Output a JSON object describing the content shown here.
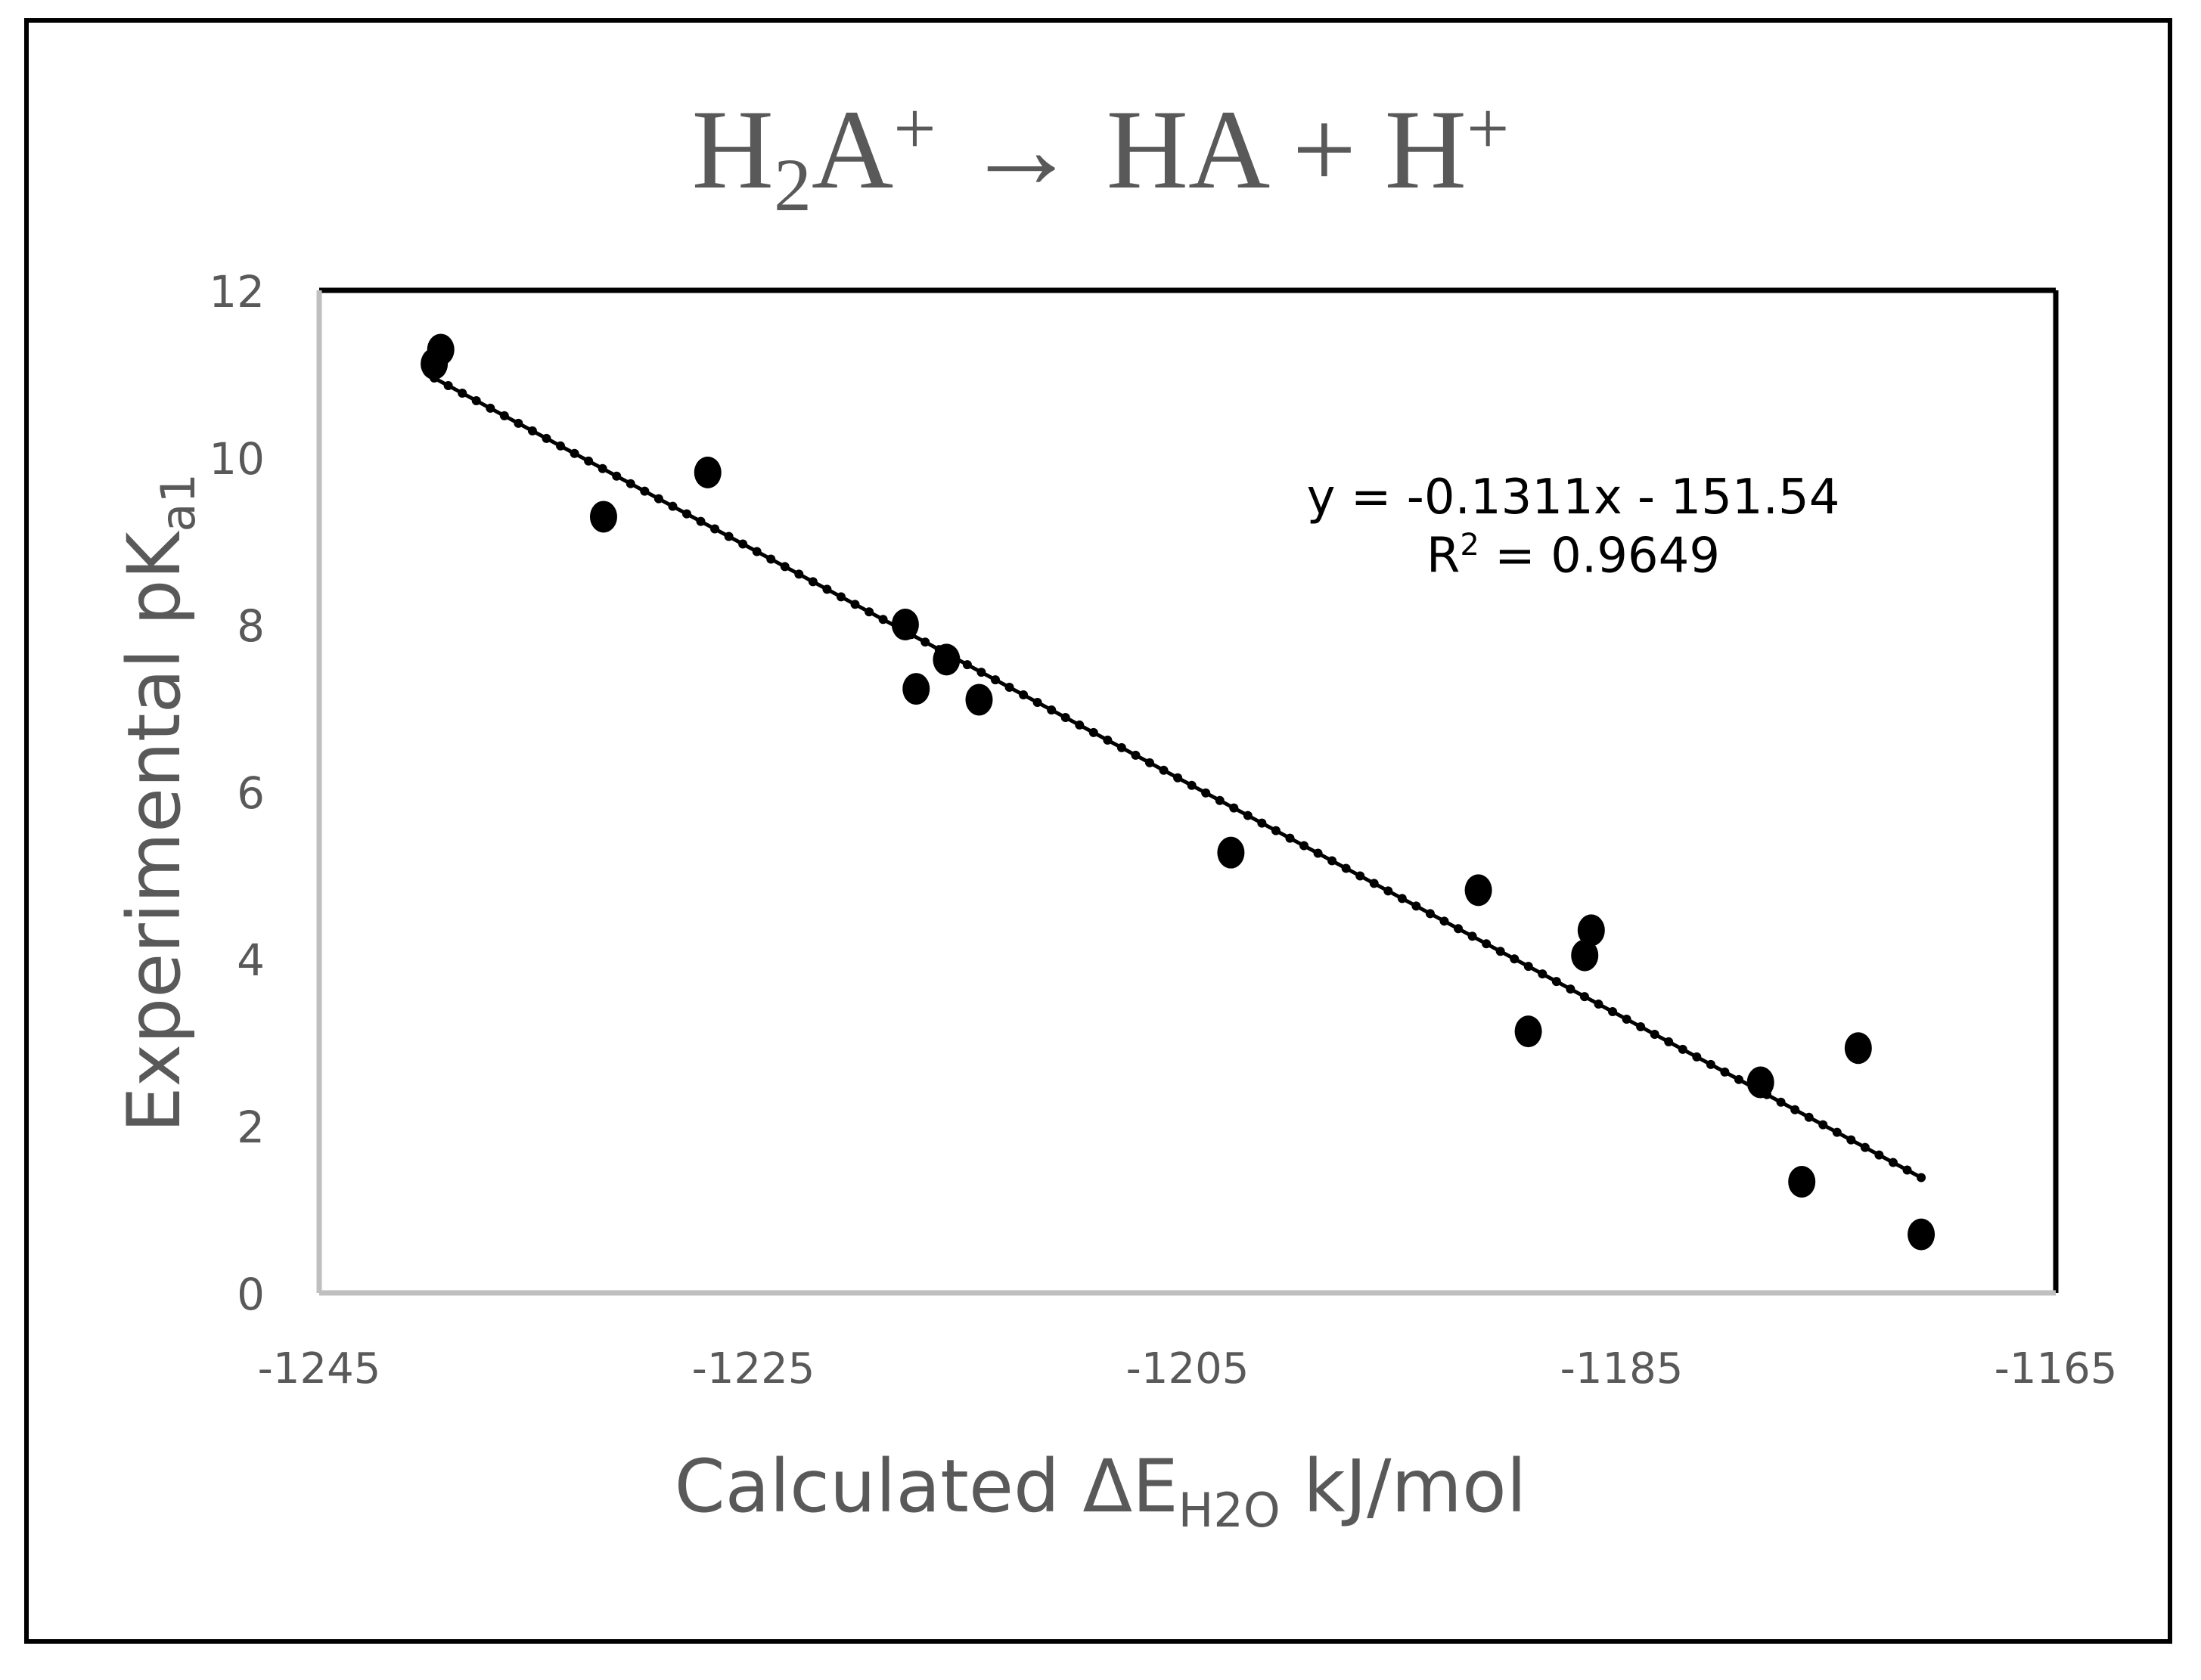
{
  "title": {
    "base1": "H",
    "sub1": "2",
    "base2": "A",
    "sup1": "+",
    "arrow": " → HA + H",
    "sup2": "+"
  },
  "axes": {
    "ylabel_main": "Experimental pK",
    "ylabel_sub": "a1",
    "xlabel_main": "Calculated ΔE",
    "xlabel_sub": "H2O",
    "xlabel_tail": " kJ/mol",
    "yticks": [
      "12",
      "10",
      "8",
      "6",
      "4",
      "2",
      "0"
    ],
    "xticks": [
      "-1245",
      "-1225",
      "-1205",
      "-1185",
      "-1165"
    ]
  },
  "trendline": {
    "equation": "y = -0.1311x - 151.54",
    "r2_label": "R",
    "r2_sup": "2",
    "r2_value": " = 0.9649"
  },
  "colors": {
    "text": "#595959",
    "points": "#000000",
    "axis_left_bottom": "#bfbfbf",
    "axis_top_right": "#000000"
  },
  "chart_data": {
    "type": "scatter",
    "title": "H2A+ → HA + H+",
    "xlabel": "Calculated ΔE_H2O kJ/mol",
    "ylabel": "Experimental pK_a1",
    "xlim": [
      -1245,
      -1165
    ],
    "ylim": [
      0,
      12
    ],
    "xticks": [
      -1245,
      -1225,
      -1205,
      -1185,
      -1165
    ],
    "yticks": [
      0,
      2,
      4,
      6,
      8,
      10,
      12
    ],
    "grid": false,
    "legend": null,
    "series": [
      {
        "name": "pKa1",
        "x": [
          -1239.4,
          -1239.7,
          -1231.9,
          -1227.1,
          -1218.0,
          -1217.5,
          -1216.1,
          -1214.6,
          -1203.0,
          -1191.6,
          -1189.3,
          -1186.7,
          -1186.4,
          -1178.6,
          -1176.7,
          -1174.1,
          -1171.2
        ],
        "y": [
          11.29,
          11.12,
          9.29,
          9.82,
          8.0,
          7.23,
          7.58,
          7.1,
          5.27,
          4.82,
          3.13,
          4.04,
          4.34,
          2.52,
          1.33,
          2.93,
          0.7
        ]
      }
    ],
    "trendline": {
      "type": "linear",
      "slope": -0.1311,
      "intercept": -151.54,
      "r2": 0.9649,
      "x_range": [
        -1239.7,
        -1171.2
      ],
      "style": "dotted"
    },
    "annotations": [
      "y = -0.1311x - 151.54",
      "R² = 0.9649"
    ]
  }
}
